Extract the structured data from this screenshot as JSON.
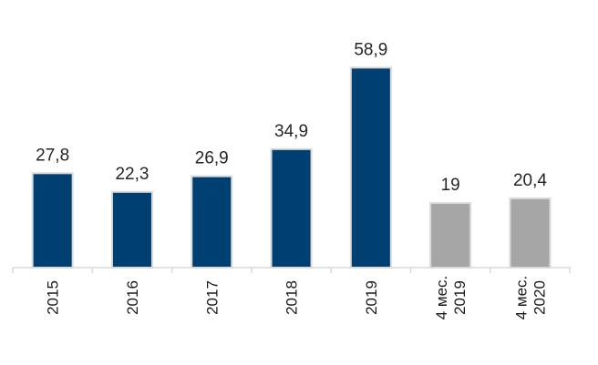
{
  "chart_data": {
    "type": "bar",
    "categories": [
      [
        "2015"
      ],
      [
        "2016"
      ],
      [
        "2017"
      ],
      [
        "2018"
      ],
      [
        "2019"
      ],
      [
        "4 мес.",
        "2019"
      ],
      [
        "4 мес.",
        "2020"
      ]
    ],
    "values": [
      27.8,
      22.3,
      26.9,
      34.9,
      58.9,
      19,
      20.4
    ],
    "value_labels": [
      "27,8",
      "22,3",
      "26,9",
      "34,9",
      "58,9",
      "19",
      "20,4"
    ],
    "bar_colors": [
      "#003f72",
      "#003f72",
      "#003f72",
      "#003f72",
      "#003f72",
      "#a6a6a6",
      "#a6a6a6"
    ],
    "bar_outline_color": "#d9d9d9",
    "axis_color": "#d9d9d9",
    "ylim": [
      0,
      65
    ],
    "grid": false,
    "legend": "none",
    "tick_label_rotation": "vertical"
  }
}
